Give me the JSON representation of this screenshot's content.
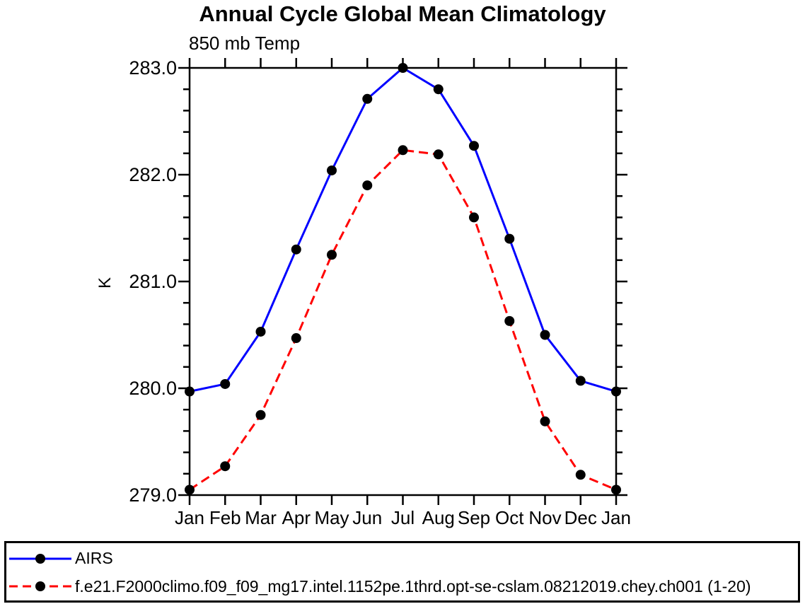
{
  "chart_data": {
    "type": "line",
    "title": "Annual Cycle Global Mean Climatology",
    "subtitle": "850 mb Temp",
    "ylabel": "K",
    "categories": [
      "Jan",
      "Feb",
      "Mar",
      "Apr",
      "May",
      "Jun",
      "Jul",
      "Aug",
      "Sep",
      "Oct",
      "Nov",
      "Dec",
      "Jan"
    ],
    "ylim": [
      279.0,
      283.0
    ],
    "ytick_major_interval": 1.0,
    "ytick_minor_interval": 0.2,
    "ytick_labels": [
      "283.0",
      "282.0",
      "281.0",
      "280.0",
      "279.0"
    ],
    "grid": false,
    "legend_position": "bottom-outside",
    "marker": {
      "shape": "filled-circle",
      "color": "#000000"
    },
    "frame_color": "#000000",
    "series": [
      {
        "name": "AIRS",
        "color": "#0000ff",
        "line_style": "solid",
        "values": [
          279.97,
          280.04,
          280.53,
          281.3,
          282.04,
          282.71,
          283.0,
          282.8,
          282.27,
          281.4,
          280.5,
          280.07,
          279.97
        ]
      },
      {
        "name": "f.e21.F2000climo.f09_f09_mg17.intel.1152pe.1thrd.opt-se-cslam.08212019.chey.ch001 (1-20)",
        "color": "#ff0000",
        "line_style": "dashed",
        "values": [
          279.05,
          279.27,
          279.75,
          280.47,
          281.25,
          281.9,
          282.23,
          282.19,
          281.6,
          280.63,
          279.69,
          279.19,
          279.05
        ]
      }
    ]
  }
}
